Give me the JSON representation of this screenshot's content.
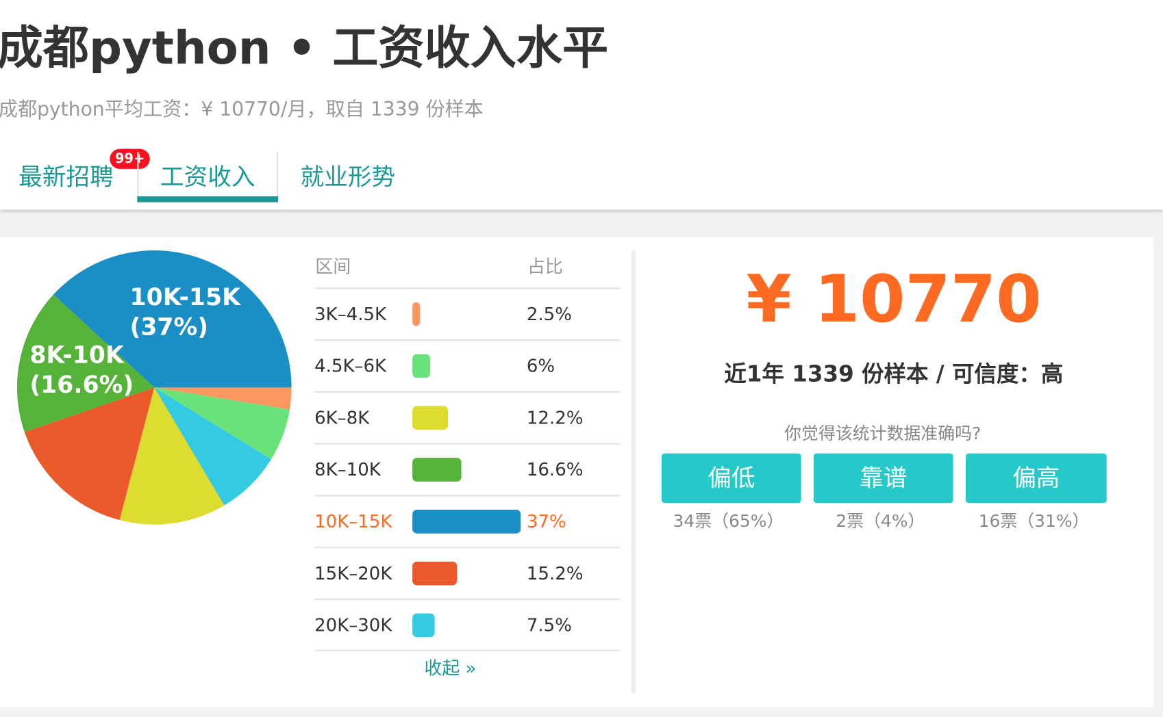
{
  "header": {
    "title": "成都python • 工资收入水平",
    "subtitle": "成都python平均工资：¥ 10770/月，取自 1339 份样本"
  },
  "tabs": [
    {
      "label": "最新招聘",
      "badge": "99+"
    },
    {
      "label": "工资收入",
      "active": true
    },
    {
      "label": "就业形势"
    }
  ],
  "table": {
    "col_range": "区间",
    "col_pct": "占比",
    "collapse": "收起 »"
  },
  "chart_data": {
    "type": "pie",
    "start": "3 o'clock, clockwise",
    "slices": [
      {
        "label": "3K–4.5K",
        "value": 2.5,
        "pct_text": "2.5%",
        "color": "#fd9762"
      },
      {
        "label": "4.5K–6K",
        "value": 6,
        "pct_text": "6%",
        "color": "#6ae27a"
      },
      {
        "label": "6K–8K",
        "value": 12.2,
        "pct_text": "12.2%",
        "color": "#dcdd30"
      },
      {
        "label": "8K–10K",
        "value": 16.6,
        "pct_text": "16.6%",
        "color": "#55b33a",
        "pie_label": "8K-10K",
        "pie_label_pct": "(16.6%)"
      },
      {
        "label": "10K–15K",
        "value": 37,
        "pct_text": "37%",
        "color": "#1a8fc5",
        "highlight": true,
        "pie_label": "10K-15K",
        "pie_label_pct": "(37%)"
      },
      {
        "label": "15K–20K",
        "value": 15.2,
        "pct_text": "15.2%",
        "color": "#ea5a2a"
      },
      {
        "label": "20K–30K",
        "value": 7.5,
        "pct_text": "7.5%",
        "color": "#33cae2"
      }
    ],
    "pie_order": [
      0,
      1,
      6,
      2,
      5,
      3,
      4
    ]
  },
  "summary": {
    "amount": "¥ 10770",
    "meta": "近1年 1339 份样本 / 可信度：高",
    "question": "你觉得该统计数据准确吗?"
  },
  "votes": [
    {
      "label": "偏低",
      "result": "34票（65%）"
    },
    {
      "label": "靠谱",
      "result": "2票（4%）"
    },
    {
      "label": "偏高",
      "result": "16票（31%）"
    }
  ],
  "colors": {
    "accent": "#1a9a96",
    "orange": "#ff6a22",
    "button": "#26c9c9",
    "badge": "#ff1020"
  }
}
